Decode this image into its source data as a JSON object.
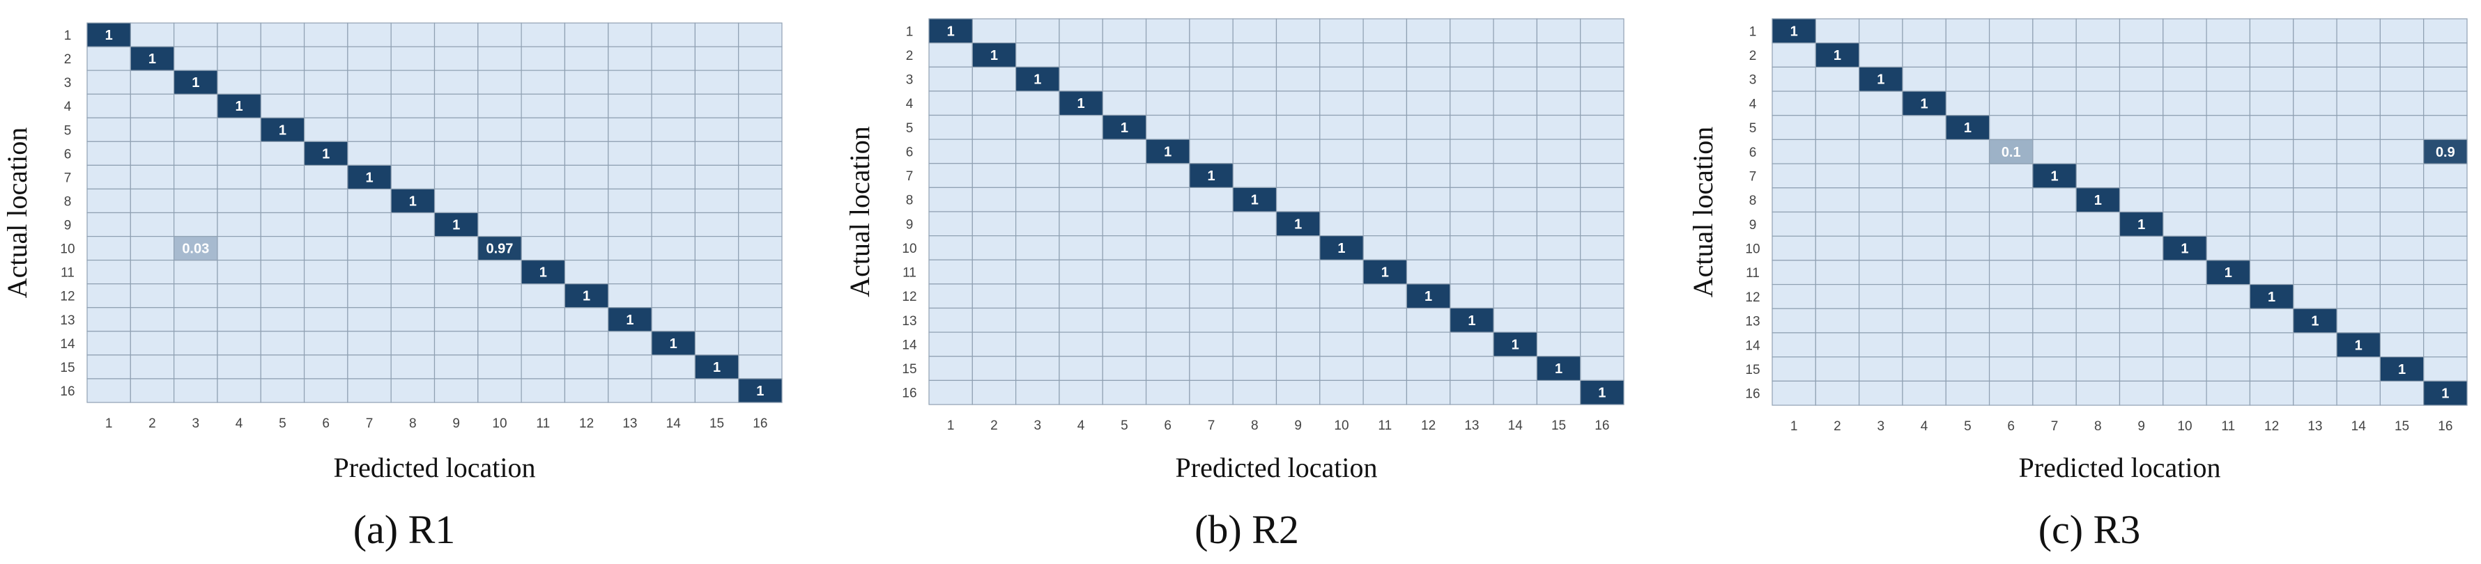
{
  "colors": {
    "cell_bg": "#dce8f5",
    "grid_line": "#8fa0b2",
    "high": "#1a4168",
    "text_on_dark": "#ffffff",
    "text_on_light": "#ffffff"
  },
  "chart_data": [
    {
      "type": "heatmap",
      "caption": "(a) R1",
      "xlabel": "Predicted location",
      "ylabel": "Actual location",
      "x_categories": [
        "1",
        "2",
        "3",
        "4",
        "5",
        "6",
        "7",
        "8",
        "9",
        "10",
        "11",
        "12",
        "13",
        "14",
        "15",
        "16"
      ],
      "y_categories": [
        "1",
        "2",
        "3",
        "4",
        "5",
        "6",
        "7",
        "8",
        "9",
        "10",
        "11",
        "12",
        "13",
        "14",
        "15",
        "16"
      ],
      "cells": [
        {
          "row": 1,
          "col": 1,
          "value": 1,
          "label": "1"
        },
        {
          "row": 2,
          "col": 2,
          "value": 1,
          "label": "1"
        },
        {
          "row": 3,
          "col": 3,
          "value": 1,
          "label": "1"
        },
        {
          "row": 4,
          "col": 4,
          "value": 1,
          "label": "1"
        },
        {
          "row": 5,
          "col": 5,
          "value": 1,
          "label": "1"
        },
        {
          "row": 6,
          "col": 6,
          "value": 1,
          "label": "1"
        },
        {
          "row": 7,
          "col": 7,
          "value": 1,
          "label": "1"
        },
        {
          "row": 8,
          "col": 8,
          "value": 1,
          "label": "1"
        },
        {
          "row": 9,
          "col": 9,
          "value": 1,
          "label": "1"
        },
        {
          "row": 10,
          "col": 3,
          "value": 0.03,
          "label": "0.03"
        },
        {
          "row": 10,
          "col": 10,
          "value": 0.97,
          "label": "0.97"
        },
        {
          "row": 11,
          "col": 11,
          "value": 1,
          "label": "1"
        },
        {
          "row": 12,
          "col": 12,
          "value": 1,
          "label": "1"
        },
        {
          "row": 13,
          "col": 13,
          "value": 1,
          "label": "1"
        },
        {
          "row": 14,
          "col": 14,
          "value": 1,
          "label": "1"
        },
        {
          "row": 15,
          "col": 15,
          "value": 1,
          "label": "1"
        },
        {
          "row": 16,
          "col": 16,
          "value": 1,
          "label": "1"
        }
      ]
    },
    {
      "type": "heatmap",
      "caption": "(b) R2",
      "xlabel": "Predicted location",
      "ylabel": "Actual location",
      "x_categories": [
        "1",
        "2",
        "3",
        "4",
        "5",
        "6",
        "7",
        "8",
        "9",
        "10",
        "11",
        "12",
        "13",
        "14",
        "15",
        "16"
      ],
      "y_categories": [
        "1",
        "2",
        "3",
        "4",
        "5",
        "6",
        "7",
        "8",
        "9",
        "10",
        "11",
        "12",
        "13",
        "14",
        "15",
        "16"
      ],
      "cells": [
        {
          "row": 1,
          "col": 1,
          "value": 1,
          "label": "1"
        },
        {
          "row": 2,
          "col": 2,
          "value": 1,
          "label": "1"
        },
        {
          "row": 3,
          "col": 3,
          "value": 1,
          "label": "1"
        },
        {
          "row": 4,
          "col": 4,
          "value": 1,
          "label": "1"
        },
        {
          "row": 5,
          "col": 5,
          "value": 1,
          "label": "1"
        },
        {
          "row": 6,
          "col": 6,
          "value": 1,
          "label": "1"
        },
        {
          "row": 7,
          "col": 7,
          "value": 1,
          "label": "1"
        },
        {
          "row": 8,
          "col": 8,
          "value": 1,
          "label": "1"
        },
        {
          "row": 9,
          "col": 9,
          "value": 1,
          "label": "1"
        },
        {
          "row": 10,
          "col": 10,
          "value": 1,
          "label": "1"
        },
        {
          "row": 11,
          "col": 11,
          "value": 1,
          "label": "1"
        },
        {
          "row": 12,
          "col": 12,
          "value": 1,
          "label": "1"
        },
        {
          "row": 13,
          "col": 13,
          "value": 1,
          "label": "1"
        },
        {
          "row": 14,
          "col": 14,
          "value": 1,
          "label": "1"
        },
        {
          "row": 15,
          "col": 15,
          "value": 1,
          "label": "1"
        },
        {
          "row": 16,
          "col": 16,
          "value": 1,
          "label": "1"
        }
      ]
    },
    {
      "type": "heatmap",
      "caption": "(c) R3",
      "xlabel": "Predicted location",
      "ylabel": "Actual location",
      "x_categories": [
        "1",
        "2",
        "3",
        "4",
        "5",
        "6",
        "7",
        "8",
        "9",
        "10",
        "11",
        "12",
        "13",
        "14",
        "15",
        "16"
      ],
      "y_categories": [
        "1",
        "2",
        "3",
        "4",
        "5",
        "6",
        "7",
        "8",
        "9",
        "10",
        "11",
        "12",
        "13",
        "14",
        "15",
        "16"
      ],
      "cells": [
        {
          "row": 1,
          "col": 1,
          "value": 1,
          "label": "1"
        },
        {
          "row": 2,
          "col": 2,
          "value": 1,
          "label": "1"
        },
        {
          "row": 3,
          "col": 3,
          "value": 1,
          "label": "1"
        },
        {
          "row": 4,
          "col": 4,
          "value": 1,
          "label": "1"
        },
        {
          "row": 5,
          "col": 5,
          "value": 1,
          "label": "1"
        },
        {
          "row": 6,
          "col": 6,
          "value": 0.1,
          "label": "0.1"
        },
        {
          "row": 6,
          "col": 16,
          "value": 0.9,
          "label": "0.9"
        },
        {
          "row": 7,
          "col": 7,
          "value": 1,
          "label": "1"
        },
        {
          "row": 8,
          "col": 8,
          "value": 1,
          "label": "1"
        },
        {
          "row": 9,
          "col": 9,
          "value": 1,
          "label": "1"
        },
        {
          "row": 10,
          "col": 10,
          "value": 1,
          "label": "1"
        },
        {
          "row": 11,
          "col": 11,
          "value": 1,
          "label": "1"
        },
        {
          "row": 12,
          "col": 12,
          "value": 1,
          "label": "1"
        },
        {
          "row": 13,
          "col": 13,
          "value": 1,
          "label": "1"
        },
        {
          "row": 14,
          "col": 14,
          "value": 1,
          "label": "1"
        },
        {
          "row": 15,
          "col": 15,
          "value": 1,
          "label": "1"
        },
        {
          "row": 16,
          "col": 16,
          "value": 1,
          "label": "1"
        }
      ]
    }
  ]
}
